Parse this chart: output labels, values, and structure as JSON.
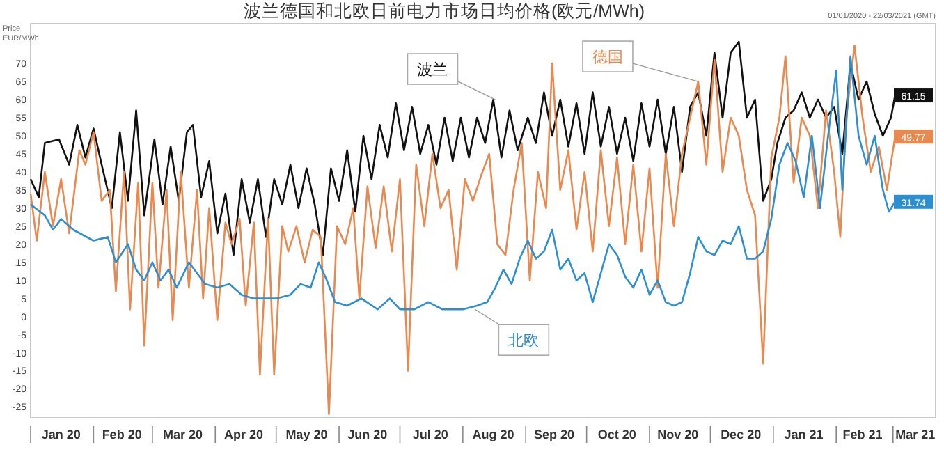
{
  "chart_data": {
    "type": "line",
    "title": "波兰德国和北欧日前电力市场日均价格(欧元/MWh)",
    "subtitle": "01/01/2020 - 22/03/2021 (GMT)",
    "ylabel": "Price EUR/MWh",
    "xlim": [
      "2020-01-01",
      "2021-03-22"
    ],
    "xticks": [
      {
        "value": "2020-01-16",
        "label": "Jan 20"
      },
      {
        "value": "2020-02-15",
        "label": "Feb 20"
      },
      {
        "value": "2020-03-16",
        "label": "Mar 20"
      },
      {
        "value": "2020-04-15",
        "label": "Apr 20"
      },
      {
        "value": "2020-05-16",
        "label": "May 20"
      },
      {
        "value": "2020-06-15",
        "label": "Jun 20"
      },
      {
        "value": "2020-07-16",
        "label": "Jul 20"
      },
      {
        "value": "2020-08-16",
        "label": "Aug 20"
      },
      {
        "value": "2020-09-15",
        "label": "Sep 20"
      },
      {
        "value": "2020-10-16",
        "label": "Oct 20"
      },
      {
        "value": "2020-11-15",
        "label": "Nov 20"
      },
      {
        "value": "2020-12-16",
        "label": "Dec 20"
      },
      {
        "value": "2021-01-16",
        "label": "Jan 21"
      },
      {
        "value": "2021-02-14",
        "label": "Feb 21"
      },
      {
        "value": "2021-03-12",
        "label": "Mar 21"
      }
    ],
    "ylim": [
      -28,
      81
    ],
    "yticks": [
      -25,
      -20,
      -15,
      -10,
      -5,
      0,
      5,
      10,
      15,
      20,
      25,
      30,
      35,
      40,
      45,
      50,
      55,
      60,
      65,
      70
    ],
    "grid": false,
    "line_style": "solid",
    "marker": "none",
    "series": [
      {
        "color": "#111111",
        "x": [
          "2020-01-01",
          "2020-01-05",
          "2020-01-08",
          "2020-01-15",
          "2020-01-20",
          "2020-01-24",
          "2020-01-28",
          "2020-02-01",
          "2020-02-05",
          "2020-02-10",
          "2020-02-14",
          "2020-02-18",
          "2020-02-22",
          "2020-02-26",
          "2020-03-02",
          "2020-03-06",
          "2020-03-10",
          "2020-03-14",
          "2020-03-18",
          "2020-03-21",
          "2020-03-25",
          "2020-03-29",
          "2020-04-02",
          "2020-04-06",
          "2020-04-10",
          "2020-04-14",
          "2020-04-18",
          "2020-04-22",
          "2020-04-26",
          "2020-04-30",
          "2020-05-04",
          "2020-05-08",
          "2020-05-12",
          "2020-05-16",
          "2020-05-20",
          "2020-05-24",
          "2020-05-28",
          "2020-06-01",
          "2020-06-05",
          "2020-06-09",
          "2020-06-13",
          "2020-06-17",
          "2020-06-21",
          "2020-06-25",
          "2020-06-29",
          "2020-07-03",
          "2020-07-07",
          "2020-07-11",
          "2020-07-15",
          "2020-07-19",
          "2020-07-23",
          "2020-07-27",
          "2020-07-31",
          "2020-08-04",
          "2020-08-08",
          "2020-08-12",
          "2020-08-16",
          "2020-08-20",
          "2020-08-24",
          "2020-08-28",
          "2020-09-02",
          "2020-09-06",
          "2020-09-10",
          "2020-09-14",
          "2020-09-18",
          "2020-09-22",
          "2020-09-26",
          "2020-09-30",
          "2020-10-04",
          "2020-10-08",
          "2020-10-12",
          "2020-10-16",
          "2020-10-20",
          "2020-10-24",
          "2020-10-28",
          "2020-11-01",
          "2020-11-05",
          "2020-11-09",
          "2020-11-13",
          "2020-11-17",
          "2020-11-21",
          "2020-11-25",
          "2020-11-29",
          "2020-12-03",
          "2020-12-07",
          "2020-12-11",
          "2020-12-15",
          "2020-12-19",
          "2020-12-23",
          "2020-12-27",
          "2020-12-31",
          "2021-01-03",
          "2021-01-07",
          "2021-01-11",
          "2021-01-15",
          "2021-01-19",
          "2021-01-23",
          "2021-01-27",
          "2021-01-31",
          "2021-02-04",
          "2021-02-08",
          "2021-02-12",
          "2021-02-16",
          "2021-02-20",
          "2021-02-24",
          "2021-02-28",
          "2021-03-02"
        ],
        "values": [
          38,
          33,
          48,
          49,
          42,
          53,
          44,
          52,
          42,
          30,
          51,
          32,
          57,
          28,
          49,
          31,
          47,
          32,
          51,
          53,
          33,
          43,
          23,
          34,
          17,
          38,
          26,
          38,
          22,
          38,
          31,
          42,
          30,
          41,
          31,
          17,
          41,
          32,
          46,
          29,
          50,
          38,
          53,
          44,
          59,
          46,
          58,
          45,
          53,
          42,
          55,
          43,
          55,
          44,
          55,
          48,
          60,
          44,
          57,
          46,
          55,
          48,
          62,
          50,
          60,
          47,
          59,
          45,
          62,
          47,
          58,
          45,
          55,
          43,
          59,
          47,
          60,
          45,
          58,
          40,
          58,
          62,
          50,
          73,
          55,
          73,
          76,
          55,
          60,
          32,
          38,
          48,
          55,
          57,
          62,
          55,
          60,
          55,
          58,
          45,
          70,
          60,
          65,
          56,
          50,
          55,
          61.15
        ]
      },
      {
        "color": "#e8894f",
        "x": [
          "2020-01-01",
          "2020-01-04",
          "2020-01-08",
          "2020-01-12",
          "2020-01-16",
          "2020-01-20",
          "2020-01-25",
          "2020-01-28",
          "2020-02-01",
          "2020-02-05",
          "2020-02-09",
          "2020-02-12",
          "2020-02-16",
          "2020-02-19",
          "2020-02-23",
          "2020-02-26",
          "2020-03-01",
          "2020-03-04",
          "2020-03-08",
          "2020-03-11",
          "2020-03-15",
          "2020-03-19",
          "2020-03-23",
          "2020-03-26",
          "2020-03-29",
          "2020-04-02",
          "2020-04-06",
          "2020-04-09",
          "2020-04-13",
          "2020-04-16",
          "2020-04-20",
          "2020-04-23",
          "2020-04-27",
          "2020-04-30",
          "2020-05-04",
          "2020-05-07",
          "2020-05-11",
          "2020-05-15",
          "2020-05-19",
          "2020-05-23",
          "2020-05-27",
          "2020-05-31",
          "2020-06-04",
          "2020-06-08",
          "2020-06-11",
          "2020-06-15",
          "2020-06-19",
          "2020-06-23",
          "2020-06-27",
          "2020-07-01",
          "2020-07-05",
          "2020-07-09",
          "2020-07-13",
          "2020-07-17",
          "2020-07-21",
          "2020-07-25",
          "2020-07-29",
          "2020-08-02",
          "2020-08-06",
          "2020-08-10",
          "2020-08-14",
          "2020-08-18",
          "2020-08-22",
          "2020-08-26",
          "2020-08-30",
          "2020-09-03",
          "2020-09-07",
          "2020-09-11",
          "2020-09-14",
          "2020-09-18",
          "2020-09-22",
          "2020-09-26",
          "2020-09-30",
          "2020-10-04",
          "2020-10-08",
          "2020-10-12",
          "2020-10-16",
          "2020-10-20",
          "2020-10-24",
          "2020-10-28",
          "2020-11-01",
          "2020-11-05",
          "2020-11-09",
          "2020-11-13",
          "2020-11-17",
          "2020-11-21",
          "2020-11-25",
          "2020-11-29",
          "2020-12-03",
          "2020-12-07",
          "2020-12-11",
          "2020-12-15",
          "2020-12-19",
          "2020-12-23",
          "2020-12-27",
          "2020-12-31",
          "2021-01-04",
          "2021-01-07",
          "2021-01-11",
          "2021-01-15",
          "2021-01-19",
          "2021-01-23",
          "2021-01-27",
          "2021-01-31",
          "2021-02-03",
          "2021-02-06",
          "2021-02-10",
          "2021-02-14",
          "2021-02-18",
          "2021-02-22",
          "2021-02-26",
          "2021-03-02"
        ],
        "values": [
          34,
          21,
          40,
          25,
          38,
          23,
          46,
          42,
          51,
          32,
          35,
          7,
          40,
          2,
          37,
          -8,
          37,
          8,
          35,
          -1,
          40,
          8,
          35,
          5,
          30,
          -1,
          26,
          20,
          27,
          3,
          26,
          -16,
          27,
          -16,
          25,
          18,
          25,
          15,
          24,
          22,
          -27,
          25,
          20,
          30,
          5,
          36,
          19,
          36,
          18,
          38,
          -15,
          42,
          25,
          45,
          30,
          35,
          13,
          38,
          32,
          39,
          45,
          20,
          17,
          35,
          48,
          10,
          40,
          30,
          70,
          35,
          46,
          24,
          40,
          18,
          46,
          25,
          44,
          20,
          42,
          18,
          41,
          8,
          45,
          25,
          45,
          55,
          65,
          42,
          71,
          40,
          55,
          50,
          35,
          28,
          -13,
          44,
          55,
          72,
          37,
          55,
          50,
          30,
          57,
          40,
          22,
          55,
          75,
          55,
          40,
          47,
          35,
          49.77
        ]
      },
      {
        "color": "#2e8fd0",
        "x": [
          "2020-01-01",
          "2020-01-08",
          "2020-01-12",
          "2020-01-16",
          "2020-01-22",
          "2020-02-01",
          "2020-02-08",
          "2020-02-12",
          "2020-02-18",
          "2020-02-22",
          "2020-02-26",
          "2020-03-01",
          "2020-03-05",
          "2020-03-09",
          "2020-03-13",
          "2020-03-19",
          "2020-03-23",
          "2020-03-27",
          "2020-04-02",
          "2020-04-08",
          "2020-04-14",
          "2020-04-20",
          "2020-05-01",
          "2020-05-08",
          "2020-05-13",
          "2020-05-18",
          "2020-05-22",
          "2020-05-26",
          "2020-05-30",
          "2020-06-05",
          "2020-06-12",
          "2020-06-20",
          "2020-06-26",
          "2020-07-01",
          "2020-07-08",
          "2020-07-15",
          "2020-07-22",
          "2020-08-01",
          "2020-08-08",
          "2020-08-13",
          "2020-08-17",
          "2020-08-21",
          "2020-08-25",
          "2020-08-29",
          "2020-09-02",
          "2020-09-06",
          "2020-09-10",
          "2020-09-14",
          "2020-09-18",
          "2020-09-22",
          "2020-09-26",
          "2020-09-30",
          "2020-10-04",
          "2020-10-08",
          "2020-10-12",
          "2020-10-16",
          "2020-10-20",
          "2020-10-24",
          "2020-10-28",
          "2020-11-01",
          "2020-11-05",
          "2020-11-09",
          "2020-11-13",
          "2020-11-17",
          "2020-11-21",
          "2020-11-25",
          "2020-11-29",
          "2020-12-03",
          "2020-12-07",
          "2020-12-11",
          "2020-12-15",
          "2020-12-19",
          "2020-12-23",
          "2020-12-27",
          "2020-12-31",
          "2021-01-04",
          "2021-01-08",
          "2021-01-12",
          "2021-01-16",
          "2021-01-20",
          "2021-01-24",
          "2021-01-28",
          "2021-02-01",
          "2021-02-04",
          "2021-02-08",
          "2021-02-12",
          "2021-02-16",
          "2021-02-20",
          "2021-02-24",
          "2021-02-27",
          "2021-03-02"
        ],
        "values": [
          31,
          28,
          24,
          27,
          24,
          21,
          22,
          15,
          20,
          13,
          10,
          15,
          10,
          13,
          8,
          15,
          12,
          9,
          8,
          9,
          6,
          5,
          5,
          6,
          9,
          8,
          15,
          10,
          4,
          3,
          5,
          2,
          5,
          2,
          2,
          4,
          2,
          2,
          3,
          4,
          8,
          13,
          9,
          16,
          21,
          16,
          18,
          24,
          13,
          16,
          10,
          12,
          4,
          12,
          20,
          17,
          11,
          8,
          13,
          6,
          10,
          4,
          3,
          4,
          12,
          22,
          18,
          17,
          21,
          20,
          25,
          16,
          16,
          18,
          27,
          42,
          48,
          43,
          33,
          50,
          30,
          50,
          68,
          35,
          72,
          50,
          42,
          50,
          35,
          29,
          31.74
        ]
      }
    ],
    "annotations": [
      {
        "text": "波兰",
        "x": "2020-08-17",
        "y": 60
      },
      {
        "text": "德国",
        "x": "2020-11-25",
        "y": 65
      },
      {
        "text": "北欧",
        "x": "2020-08-07",
        "y": 2
      },
      {
        "text": "61.15",
        "x": "2021-03-02",
        "y": 61.15
      },
      {
        "text": "49.77",
        "x": "2021-03-02",
        "y": 49.77
      },
      {
        "text": "31.74",
        "x": "2021-03-02",
        "y": 31.74
      }
    ]
  }
}
